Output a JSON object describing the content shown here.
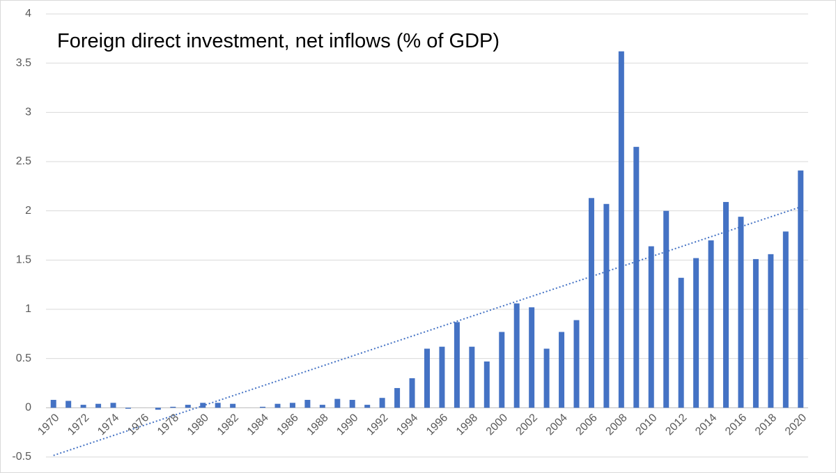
{
  "chart_data": {
    "type": "bar",
    "title": "Foreign direct investment, net inflows (% of GDP)",
    "categories": [
      "1970",
      null,
      "1972",
      null,
      "1974",
      null,
      "1976",
      null,
      "1978",
      null,
      "1980",
      null,
      "1982",
      null,
      "1984",
      null,
      "1986",
      null,
      "1988",
      null,
      "1990",
      null,
      "1992",
      null,
      "1994",
      null,
      "1996",
      null,
      "1998",
      null,
      "2000",
      null,
      "2002",
      null,
      "2004",
      null,
      "2006",
      null,
      "2008",
      null,
      "2010",
      null,
      "2012",
      null,
      "2014",
      null,
      "2016",
      null,
      "2018",
      null,
      "2020"
    ],
    "values": [
      0.08,
      0.07,
      0.03,
      0.04,
      0.05,
      -0.01,
      0,
      -0.02,
      0.01,
      0.03,
      0.05,
      0.05,
      0.04,
      0,
      0.01,
      0.04,
      0.05,
      0.08,
      0.03,
      0.09,
      0.08,
      0.03,
      0.1,
      0.2,
      0.3,
      0.6,
      0.62,
      0.87,
      0.62,
      0.47,
      0.77,
      1.06,
      1.02,
      0.6,
      0.77,
      0.89,
      2.13,
      2.07,
      3.62,
      2.65,
      1.64,
      2.0,
      1.32,
      1.52,
      1.7,
      2.09,
      1.94,
      1.51,
      1.56,
      1.79,
      2.41
    ],
    "color": "#4472c4",
    "trendline": "linear",
    "ylim": [
      -0.5,
      4
    ],
    "yticks": [
      -0.5,
      0,
      0.5,
      1,
      1.5,
      2,
      2.5,
      3,
      3.5,
      4
    ],
    "grid": true
  }
}
